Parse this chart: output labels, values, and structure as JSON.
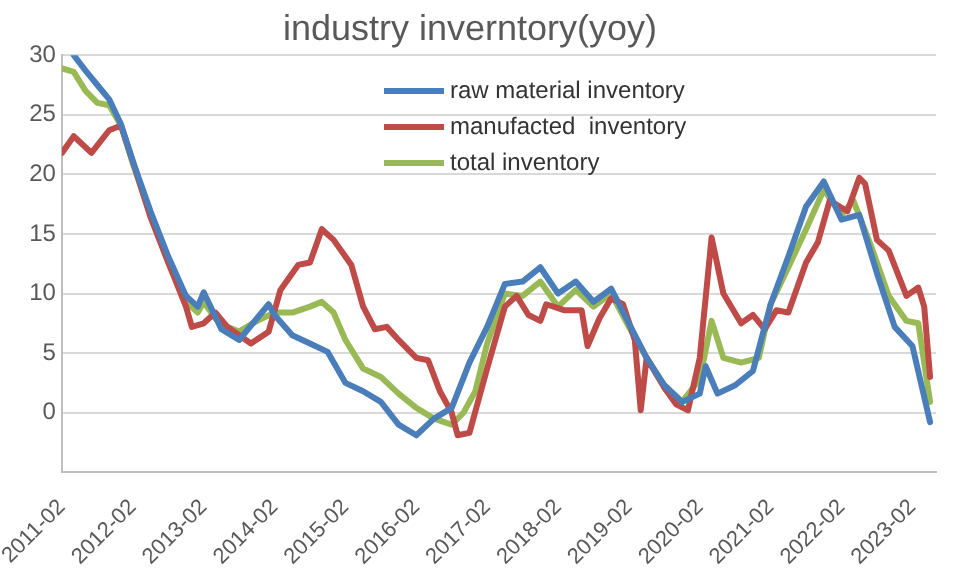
{
  "chart_data": {
    "type": "line",
    "title": "industry inverntory(yoy)",
    "legend": "top",
    "grid": "y",
    "marker": "none",
    "line_style": "solid",
    "xlim": [
      "2011-02",
      "2023-06"
    ],
    "xticks": [
      "2011-02",
      "2012-02",
      "2013-02",
      "2014-02",
      "2015-02",
      "2016-02",
      "2017-02",
      "2018-02",
      "2019-02",
      "2020-02",
      "2021-02",
      "2022-02",
      "2023-02"
    ],
    "ylim": [
      -5,
      30
    ],
    "yticks": [
      {
        "value": -5,
        "label": null
      },
      0,
      5,
      10,
      15,
      20,
      25,
      30
    ],
    "series": [
      {
        "name": "raw material inventory",
        "color": "#4a7ebb",
        "x": [
          "2011-04",
          "2011-06",
          "2011-08",
          "2011-10",
          "2011-12",
          "2012-02",
          "2012-05",
          "2012-08",
          "2012-11",
          "2013-01",
          "2013-02",
          "2013-05",
          "2013-08",
          "2013-11",
          "2014-01",
          "2014-02",
          "2014-05",
          "2014-08",
          "2014-11",
          "2015-02",
          "2015-05",
          "2015-08",
          "2015-11",
          "2016-02",
          "2016-05",
          "2016-08",
          "2016-11",
          "2017-02",
          "2017-05",
          "2017-08",
          "2017-11",
          "2018-02",
          "2018-05",
          "2018-08",
          "2018-11",
          "2019-02",
          "2019-05",
          "2019-08",
          "2019-11",
          "2020-02",
          "2020-03",
          "2020-05",
          "2020-08",
          "2020-11",
          "2021-02",
          "2021-05",
          "2021-08",
          "2021-11",
          "2022-02",
          "2022-05",
          "2022-08",
          "2022-11",
          "2023-02",
          "2023-05"
        ],
        "values": [
          30,
          28.7,
          27.5,
          26.3,
          24.2,
          21.1,
          16.9,
          13.1,
          9.8,
          8.9,
          10.1,
          7.0,
          6.1,
          7.9,
          9.1,
          8.2,
          6.5,
          5.8,
          5.1,
          2.5,
          1.8,
          0.9,
          -1.0,
          -1.9,
          -0.5,
          0.4,
          4.2,
          7.2,
          10.8,
          11.0,
          12.2,
          10.0,
          11.0,
          9.3,
          10.4,
          7.5,
          4.6,
          2.3,
          0.9,
          1.6,
          3.9,
          1.6,
          2.3,
          3.5,
          9.1,
          13.1,
          17.3,
          19.4,
          16.2,
          16.6,
          11.7,
          7.2,
          5.6,
          -0.8
        ]
      },
      {
        "name": "manufacted  inventory",
        "color": "#be4b48",
        "x": [
          "2011-02",
          "2011-04",
          "2011-07",
          "2011-10",
          "2011-12",
          "2012-02",
          "2012-05",
          "2012-08",
          "2012-11",
          "2012-12",
          "2013-02",
          "2013-04",
          "2013-06",
          "2013-08",
          "2013-10",
          "2014-01",
          "2014-03",
          "2014-06",
          "2014-08",
          "2014-10",
          "2014-12",
          "2015-03",
          "2015-05",
          "2015-07",
          "2015-09",
          "2015-11",
          "2016-02",
          "2016-04",
          "2016-06",
          "2016-08",
          "2016-09",
          "2016-11",
          "2017-02",
          "2017-05",
          "2017-07",
          "2017-09",
          "2017-11",
          "2017-12",
          "2018-03",
          "2018-06",
          "2018-07",
          "2018-09",
          "2018-11",
          "2019-01",
          "2019-03",
          "2019-04",
          "2019-05",
          "2019-08",
          "2019-10",
          "2019-12",
          "2020-02",
          "2020-04",
          "2020-06",
          "2020-09",
          "2020-11",
          "2021-01",
          "2021-03",
          "2021-05",
          "2021-08",
          "2021-10",
          "2021-12",
          "2022-03",
          "2022-05",
          "2022-06",
          "2022-08",
          "2022-10",
          "2023-01",
          "2023-03",
          "2023-04",
          "2023-05"
        ],
        "values": [
          21.8,
          23.2,
          21.8,
          23.7,
          24.1,
          21.1,
          16.4,
          12.6,
          8.9,
          7.2,
          7.5,
          8.4,
          7.2,
          6.5,
          5.8,
          6.8,
          10.3,
          12.4,
          12.6,
          15.4,
          14.5,
          12.4,
          8.9,
          7.0,
          7.2,
          6.1,
          4.6,
          4.4,
          1.8,
          0,
          -1.9,
          -1.7,
          3.7,
          8.9,
          9.8,
          8.2,
          7.7,
          9.1,
          8.6,
          8.6,
          5.6,
          7.9,
          9.6,
          9.1,
          6.1,
          0.2,
          4.6,
          2.1,
          0.7,
          0.2,
          4.6,
          14.7,
          10.0,
          7.5,
          8.2,
          7.0,
          8.6,
          8.4,
          12.6,
          14.3,
          17.8,
          16.9,
          19.7,
          19.2,
          14.5,
          13.6,
          9.8,
          10.5,
          8.9,
          3.0
        ]
      },
      {
        "name": "total inventory",
        "color": "#98b954",
        "x": [
          "2011-02",
          "2011-04",
          "2011-06",
          "2011-08",
          "2011-10",
          "2011-12",
          "2012-02",
          "2012-05",
          "2012-08",
          "2012-11",
          "2013-01",
          "2013-02",
          "2013-04",
          "2013-06",
          "2013-08",
          "2013-11",
          "2014-02",
          "2014-05",
          "2014-08",
          "2014-10",
          "2014-12",
          "2015-02",
          "2015-05",
          "2015-08",
          "2015-11",
          "2016-02",
          "2016-05",
          "2016-08",
          "2016-10",
          "2016-12",
          "2017-02",
          "2017-05",
          "2017-08",
          "2017-11",
          "2018-02",
          "2018-05",
          "2018-08",
          "2018-11",
          "2019-02",
          "2019-05",
          "2019-08",
          "2019-11",
          "2020-02",
          "2020-04",
          "2020-06",
          "2020-09",
          "2020-12",
          "2021-02",
          "2021-05",
          "2021-08",
          "2021-11",
          "2022-02",
          "2022-04",
          "2022-07",
          "2022-10",
          "2023-01",
          "2023-03",
          "2023-05"
        ],
        "values": [
          28.9,
          28.6,
          27.0,
          26.0,
          25.8,
          24.1,
          20.9,
          16.6,
          12.6,
          9.3,
          8.4,
          9.3,
          7.9,
          7.2,
          6.8,
          7.7,
          8.4,
          8.4,
          8.9,
          9.3,
          8.4,
          6.1,
          3.7,
          3.0,
          1.6,
          0.4,
          -0.5,
          -1.0,
          0,
          1.8,
          5.8,
          10.0,
          9.8,
          11.0,
          8.9,
          10.3,
          8.9,
          10.0,
          7.2,
          4.6,
          2.3,
          0.9,
          2.8,
          7.7,
          4.6,
          4.2,
          4.6,
          9.1,
          12.2,
          15.4,
          18.7,
          16.6,
          17.8,
          14.0,
          9.8,
          7.7,
          7.5,
          0.9
        ]
      }
    ]
  }
}
